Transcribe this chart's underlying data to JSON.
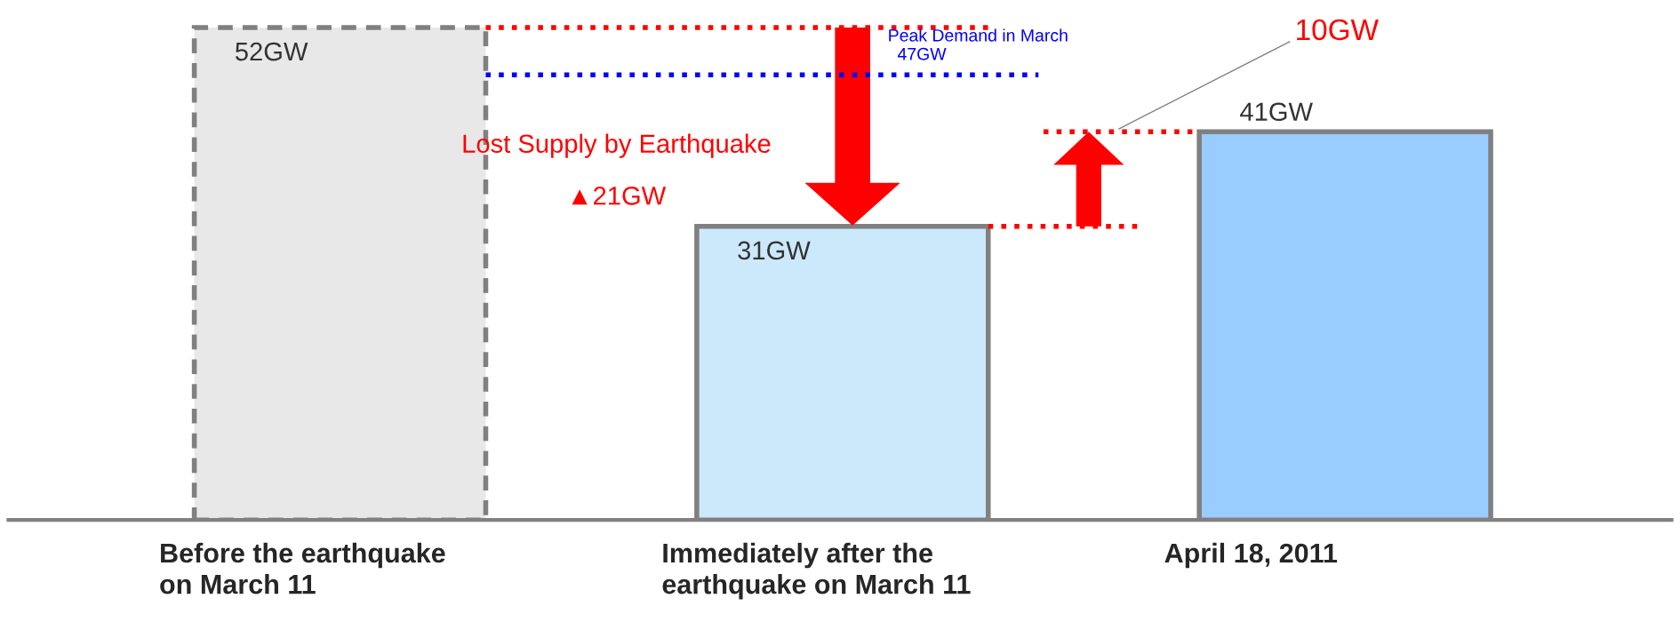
{
  "chart_data": {
    "type": "bar",
    "grid": false,
    "legend": false,
    "categories": [
      "Before the earthquake\non March 11",
      "Immediately after the\nearthquake on March 11",
      "April 18, 2011"
    ],
    "series": [
      {
        "color": "#e8e8e8",
        "line_style": "dashed",
        "values": [
          52,
          null,
          null
        ],
        "value_labels": [
          "52GW",
          null,
          null
        ]
      },
      {
        "color": "#cce9fb",
        "line_style": "solid",
        "values": [
          null,
          31,
          null
        ],
        "value_labels": [
          null,
          "31GW",
          null
        ]
      },
      {
        "color": "#99ccff",
        "line_style": "solid",
        "values": [
          null,
          null,
          41
        ],
        "value_labels": [
          null,
          null,
          "41GW"
        ]
      }
    ],
    "ref_lines": [
      {
        "axis": "y",
        "value": 47,
        "label": "Peak Demand in March\n  47GW",
        "color": "#0000ff",
        "line_style": "dotted"
      },
      {
        "axis": "y",
        "value": 52,
        "color": "#ff0000",
        "line_style": "dotted"
      },
      {
        "axis": "y",
        "value": 31,
        "color": "#ff0000",
        "line_style": "dotted"
      },
      {
        "axis": "y",
        "value": 41,
        "color": "#ff0000",
        "line_style": "dotted"
      }
    ],
    "annotations": [
      "Lost Supply by Earthquake",
      "▲21GW",
      "10GW"
    ]
  }
}
